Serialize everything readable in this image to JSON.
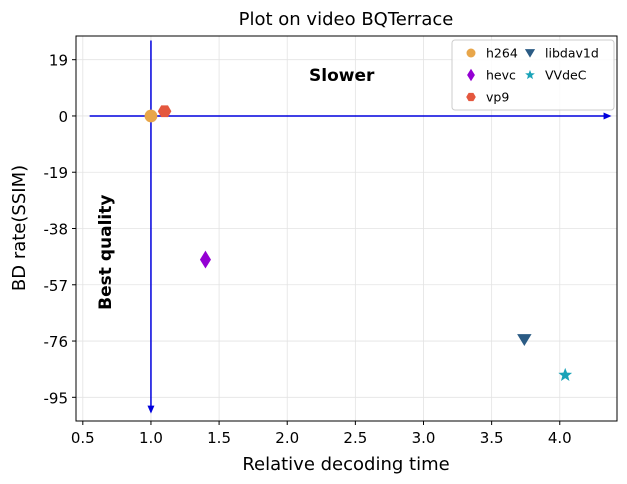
{
  "chart_data": {
    "type": "scatter",
    "title": "Plot on video BQTerrace",
    "xlabel": "Relative decoding time",
    "ylabel": "BD rate(SSIM)",
    "xlim": [
      0.45,
      4.42
    ],
    "ylim": [
      -103,
      27
    ],
    "xticks": [
      0.5,
      1.0,
      1.5,
      2.0,
      2.5,
      3.0,
      3.5,
      4.0
    ],
    "xtick_labels": [
      "0.5",
      "1.0",
      "1.5",
      "2.0",
      "2.5",
      "3.0",
      "3.5",
      "4.0"
    ],
    "yticks": [
      19,
      0,
      -19,
      -38,
      -57,
      -76,
      -95
    ],
    "ytick_labels": [
      "19",
      "0",
      "-19",
      "-38",
      "-57",
      "-76",
      "-95"
    ],
    "grid": true,
    "legend_position": "top-right",
    "legend_columns": 2,
    "series": [
      {
        "name": "h264",
        "marker": "circle",
        "color": "#e8a64a",
        "points": [
          {
            "x": 1.0,
            "y": 0
          }
        ]
      },
      {
        "name": "hevc",
        "marker": "thin-diamond",
        "color": "#9400d3",
        "points": [
          {
            "x": 1.4,
            "y": -48.5
          }
        ]
      },
      {
        "name": "vp9",
        "marker": "hexagon",
        "color": "#e4573e",
        "points": [
          {
            "x": 1.1,
            "y": 1.6
          }
        ]
      },
      {
        "name": "libdav1d",
        "marker": "triangle-down",
        "color": "#2b5b84",
        "points": [
          {
            "x": 3.74,
            "y": -75.5
          }
        ]
      },
      {
        "name": "VVdeC",
        "marker": "star",
        "color": "#1aa3b8",
        "points": [
          {
            "x": 4.04,
            "y": -87.5
          }
        ]
      }
    ],
    "reference_lines": {
      "color": "#0000dd",
      "horizontal": {
        "y": 0,
        "x_from": 0.55,
        "x_to": 4.38
      },
      "vertical": {
        "x": 1.0,
        "y_from": 25.5,
        "y_to": -100.5
      }
    },
    "annotations": [
      {
        "text": "Slower",
        "x": 2.4,
        "y": 13.5,
        "rotation": 0
      },
      {
        "text": "Best quality",
        "x": 0.67,
        "y": -46,
        "rotation": -90
      }
    ]
  }
}
